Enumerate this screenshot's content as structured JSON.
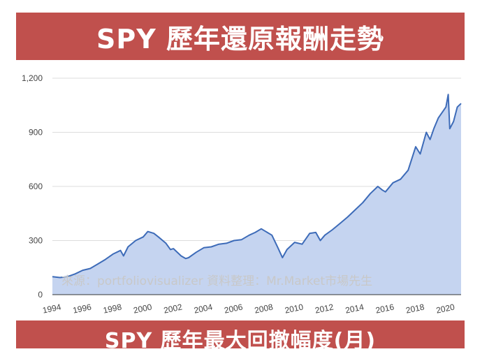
{
  "header": {
    "title": "SPY 歷年還原報酬走勢"
  },
  "footer_banner": {
    "title": "SPY 歷年最大回撤幅度(月)"
  },
  "watermark": "來源：portfoliovisualizer 資料整理：Mr.Market市場先生",
  "colors": {
    "banner": "#c0504d",
    "line": "#3d6bb8",
    "area": "#c5d4f0",
    "grid": "#dddddd"
  },
  "chart_data": {
    "type": "area",
    "title": "",
    "xlabel": "",
    "ylabel": "",
    "ylim": [
      0,
      1200
    ],
    "xlim": [
      1994,
      2021
    ],
    "grid": true,
    "y_ticks": [
      0,
      300,
      600,
      900,
      1200
    ],
    "y_tick_labels": [
      "0",
      "300",
      "600",
      "900",
      "1,200"
    ],
    "x_ticks": [
      1994,
      1996,
      1998,
      2000,
      2002,
      2004,
      2006,
      2008,
      2010,
      2012,
      2014,
      2016,
      2018,
      2020
    ],
    "x_tick_labels": [
      "1994",
      "1996",
      "1998",
      "2000",
      "2002",
      "2004",
      "2006",
      "2008",
      "2010",
      "2012",
      "2014",
      "2016",
      "2018",
      "2020"
    ],
    "series": [
      {
        "x": [
          1994.0,
          1994.5,
          1995.0,
          1995.5,
          1996.0,
          1996.5,
          1997.0,
          1997.5,
          1998.0,
          1998.5,
          1998.7,
          1999.0,
          1999.5,
          2000.0,
          2000.3,
          2000.7,
          2001.0,
          2001.5,
          2001.8,
          2002.0,
          2002.5,
          2002.8,
          2003.0,
          2003.5,
          2004.0,
          2004.5,
          2005.0,
          2005.5,
          2006.0,
          2006.5,
          2007.0,
          2007.4,
          2007.8,
          2008.0,
          2008.5,
          2008.9,
          2009.2,
          2009.5,
          2010.0,
          2010.5,
          2011.0,
          2011.4,
          2011.7,
          2012.0,
          2012.5,
          2013.0,
          2013.5,
          2014.0,
          2014.5,
          2015.0,
          2015.5,
          2015.8,
          2016.0,
          2016.5,
          2017.0,
          2017.5,
          2018.0,
          2018.3,
          2018.7,
          2018.95,
          2019.2,
          2019.5,
          2020.0,
          2020.15,
          2020.25,
          2020.5,
          2020.75,
          2021.0
        ],
        "y": [
          100,
          95,
          100,
          115,
          135,
          145,
          170,
          195,
          225,
          245,
          215,
          265,
          300,
          320,
          350,
          340,
          320,
          285,
          250,
          255,
          215,
          200,
          205,
          235,
          260,
          265,
          280,
          285,
          300,
          305,
          330,
          345,
          365,
          355,
          330,
          260,
          205,
          250,
          290,
          280,
          340,
          345,
          300,
          330,
          360,
          395,
          430,
          470,
          510,
          560,
          600,
          580,
          570,
          620,
          640,
          690,
          820,
          780,
          900,
          860,
          920,
          980,
          1040,
          1110,
          920,
          960,
          1040,
          1060
        ]
      }
    ]
  }
}
